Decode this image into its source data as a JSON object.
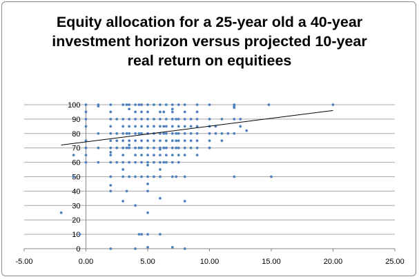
{
  "chart_data": {
    "type": "scatter",
    "title_lines": [
      "Equity allocation for a 25-year old a 40-year",
      "investment horizon versus projected 10-year",
      "real return on equitiees"
    ],
    "xlabel": "",
    "ylabel": "",
    "xlim": [
      -5,
      25
    ],
    "ylim": [
      0,
      100
    ],
    "x_ticks": [
      "-5.00",
      "0.00",
      "5.00",
      "10.00",
      "15.00",
      "20.00",
      "25.00"
    ],
    "y_ticks": [
      "0",
      "10",
      "20",
      "30",
      "40",
      "50",
      "60",
      "70",
      "80",
      "90",
      "100"
    ],
    "grid": "horizontal",
    "legend": "none",
    "colors": {
      "points": "#4f81bd",
      "trendline": "#000000",
      "grid": "#a6a6a6"
    },
    "trendline": {
      "type": "linear",
      "points": [
        [
          -2,
          72
        ],
        [
          20,
          96
        ]
      ]
    },
    "points": [
      [
        -2,
        25
      ],
      [
        -1,
        50
      ],
      [
        -1,
        65
      ],
      [
        0,
        100
      ],
      [
        0,
        95
      ],
      [
        0,
        90
      ],
      [
        0,
        85
      ],
      [
        0,
        75
      ],
      [
        0,
        70
      ],
      [
        0,
        65
      ],
      [
        0,
        60
      ],
      [
        -0.5,
        10
      ],
      [
        1,
        100
      ],
      [
        1,
        99
      ],
      [
        1,
        80
      ],
      [
        1,
        70
      ],
      [
        1,
        60
      ],
      [
        2,
        100
      ],
      [
        2,
        95
      ],
      [
        2,
        90
      ],
      [
        2,
        85
      ],
      [
        2,
        80
      ],
      [
        2,
        75
      ],
      [
        2,
        70
      ],
      [
        2,
        67
      ],
      [
        2,
        65
      ],
      [
        2,
        60
      ],
      [
        2,
        50
      ],
      [
        2,
        44
      ],
      [
        2,
        40
      ],
      [
        2,
        0
      ],
      [
        2.5,
        90
      ],
      [
        2.5,
        80
      ],
      [
        2.5,
        75
      ],
      [
        2.5,
        70
      ],
      [
        2.5,
        60
      ],
      [
        3,
        100
      ],
      [
        3,
        90
      ],
      [
        3,
        85
      ],
      [
        3,
        80
      ],
      [
        3,
        75
      ],
      [
        3,
        70
      ],
      [
        3,
        65
      ],
      [
        3,
        60
      ],
      [
        3,
        55
      ],
      [
        3,
        50
      ],
      [
        3,
        33
      ],
      [
        3.3,
        100
      ],
      [
        3.3,
        80
      ],
      [
        3.3,
        70
      ],
      [
        3.3,
        40
      ],
      [
        3.5,
        100
      ],
      [
        3.5,
        97
      ],
      [
        3.5,
        90
      ],
      [
        3.5,
        85
      ],
      [
        3.5,
        80
      ],
      [
        3.5,
        75
      ],
      [
        3.5,
        72
      ],
      [
        3.5,
        70
      ],
      [
        3.5,
        60
      ],
      [
        3.5,
        50
      ],
      [
        4,
        100
      ],
      [
        4,
        95
      ],
      [
        4,
        90
      ],
      [
        4,
        85
      ],
      [
        4,
        80
      ],
      [
        4,
        75
      ],
      [
        4,
        70
      ],
      [
        4,
        65
      ],
      [
        4,
        60
      ],
      [
        4,
        50
      ],
      [
        4,
        30
      ],
      [
        4,
        0
      ],
      [
        4.3,
        100
      ],
      [
        4.3,
        80
      ],
      [
        4.3,
        70
      ],
      [
        4.3,
        10
      ],
      [
        4.5,
        100
      ],
      [
        4.5,
        95
      ],
      [
        4.5,
        90
      ],
      [
        4.5,
        85
      ],
      [
        4.5,
        80
      ],
      [
        4.5,
        75
      ],
      [
        4.5,
        70
      ],
      [
        4.5,
        65
      ],
      [
        4.5,
        60
      ],
      [
        4.5,
        50
      ],
      [
        4.5,
        10
      ],
      [
        5,
        100
      ],
      [
        5,
        95
      ],
      [
        5,
        90
      ],
      [
        5,
        85
      ],
      [
        5,
        80
      ],
      [
        5,
        75
      ],
      [
        5,
        70
      ],
      [
        5,
        65
      ],
      [
        5,
        60
      ],
      [
        5,
        58
      ],
      [
        5,
        50
      ],
      [
        5,
        45
      ],
      [
        5,
        40
      ],
      [
        5,
        25
      ],
      [
        5,
        10
      ],
      [
        5,
        1
      ],
      [
        5.5,
        100
      ],
      [
        5.5,
        90
      ],
      [
        5.5,
        85
      ],
      [
        5.5,
        80
      ],
      [
        5.5,
        75
      ],
      [
        5.5,
        70
      ],
      [
        5.5,
        65
      ],
      [
        5.5,
        60
      ],
      [
        5.5,
        50
      ],
      [
        6,
        100
      ],
      [
        6,
        95
      ],
      [
        6,
        90
      ],
      [
        6,
        85
      ],
      [
        6,
        80
      ],
      [
        6,
        75
      ],
      [
        6,
        70
      ],
      [
        6,
        69
      ],
      [
        6,
        65
      ],
      [
        6,
        60
      ],
      [
        6,
        55
      ],
      [
        6,
        50
      ],
      [
        6,
        35
      ],
      [
        6,
        10
      ],
      [
        6.3,
        95
      ],
      [
        6.3,
        85
      ],
      [
        6.3,
        80
      ],
      [
        6.3,
        70
      ],
      [
        6.3,
        60
      ],
      [
        6.5,
        100
      ],
      [
        6.5,
        90
      ],
      [
        6.5,
        85
      ],
      [
        6.5,
        80
      ],
      [
        6.5,
        75
      ],
      [
        6.5,
        70
      ],
      [
        6.5,
        65
      ],
      [
        6.5,
        60
      ],
      [
        7,
        100
      ],
      [
        7,
        97
      ],
      [
        7,
        95
      ],
      [
        7,
        90
      ],
      [
        7,
        85
      ],
      [
        7,
        80
      ],
      [
        7,
        75
      ],
      [
        7,
        70
      ],
      [
        7,
        65
      ],
      [
        7,
        60
      ],
      [
        7,
        50
      ],
      [
        7,
        1
      ],
      [
        7.3,
        90
      ],
      [
        7.3,
        80
      ],
      [
        7.3,
        75
      ],
      [
        7.3,
        70
      ],
      [
        7.3,
        50
      ],
      [
        7.5,
        100
      ],
      [
        7.5,
        90
      ],
      [
        7.5,
        85
      ],
      [
        7.5,
        80
      ],
      [
        7.5,
        75
      ],
      [
        7.5,
        70
      ],
      [
        7.5,
        65
      ],
      [
        7.5,
        60
      ],
      [
        8,
        100
      ],
      [
        8,
        95
      ],
      [
        8,
        90
      ],
      [
        8,
        85
      ],
      [
        8,
        80
      ],
      [
        8,
        75
      ],
      [
        8,
        70
      ],
      [
        8,
        65
      ],
      [
        8,
        50
      ],
      [
        8,
        33
      ],
      [
        8,
        0
      ],
      [
        8.5,
        90
      ],
      [
        8.5,
        85
      ],
      [
        8.5,
        80
      ],
      [
        8.5,
        75
      ],
      [
        8.5,
        70
      ],
      [
        9,
        100
      ],
      [
        9,
        95
      ],
      [
        9,
        90
      ],
      [
        9,
        85
      ],
      [
        9,
        80
      ],
      [
        9,
        75
      ],
      [
        9,
        70
      ],
      [
        9,
        65
      ],
      [
        10,
        100
      ],
      [
        10,
        90
      ],
      [
        10,
        85
      ],
      [
        10,
        80
      ],
      [
        10,
        75
      ],
      [
        10,
        70
      ],
      [
        10.5,
        85
      ],
      [
        10.5,
        80
      ],
      [
        11,
        90
      ],
      [
        11,
        80
      ],
      [
        11,
        75
      ],
      [
        11.5,
        80
      ],
      [
        12,
        100
      ],
      [
        12,
        99
      ],
      [
        12,
        98
      ],
      [
        12,
        90
      ],
      [
        12,
        80
      ],
      [
        12,
        50
      ],
      [
        12.5,
        90
      ],
      [
        12.5,
        85
      ],
      [
        13,
        82
      ],
      [
        14.8,
        100
      ],
      [
        15,
        50
      ],
      [
        20,
        100
      ]
    ]
  }
}
